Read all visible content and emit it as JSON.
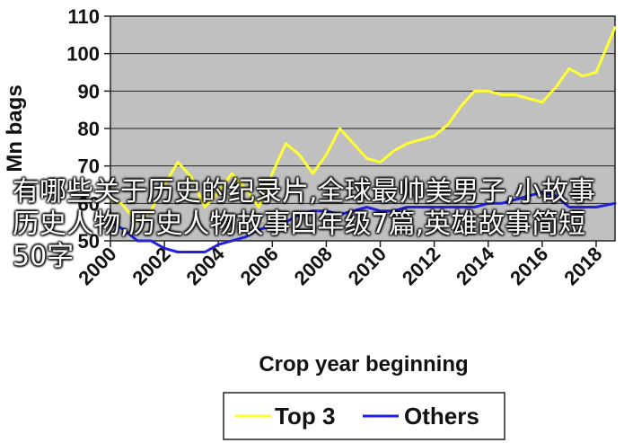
{
  "chart_data": {
    "type": "line",
    "xlabel": "Crop year beginning",
    "ylabel": "Mn bags",
    "xlim": [
      2000,
      2018.7
    ],
    "ylim": [
      50,
      110
    ],
    "yticks": [
      50,
      60,
      70,
      80,
      90,
      100,
      110
    ],
    "xticks": [
      "2000",
      "2002",
      "2004",
      "2006",
      "2008",
      "2010",
      "2012",
      "2014",
      "2016",
      "2018"
    ],
    "grid": "horizontal",
    "legend_position": "bottom",
    "series": [
      {
        "name": "Top 3",
        "color": "#ffff33",
        "x": [
          2000,
          2000.4,
          2001,
          2001.5,
          2002,
          2002.5,
          2003,
          2003.5,
          2004,
          2004.5,
          2005,
          2005.5,
          2006,
          2006.5,
          2007,
          2007.5,
          2008,
          2008.5,
          2009,
          2009.5,
          2010,
          2010.5,
          2011,
          2011.5,
          2012,
          2012.5,
          2013,
          2013.5,
          2014,
          2014.5,
          2015,
          2015.5,
          2016,
          2016.5,
          2017,
          2017.5,
          2018,
          2018.7
        ],
        "values": [
          61,
          60,
          55,
          58,
          65,
          71,
          67,
          59,
          63,
          68,
          64,
          59,
          68,
          76,
          73,
          68,
          73,
          80,
          76,
          72,
          71,
          74,
          76,
          77,
          78,
          81,
          86,
          90,
          90,
          89,
          89,
          88,
          87,
          91,
          96,
          94,
          95,
          107
        ]
      },
      {
        "name": "Others",
        "color": "#2222dd",
        "x": [
          2000,
          2000.5,
          2001,
          2001.5,
          2002,
          2002.5,
          2003,
          2003.5,
          2004,
          2004.5,
          2005,
          2005.5,
          2006,
          2006.5,
          2007,
          2007.5,
          2008,
          2008.5,
          2009,
          2009.5,
          2010,
          2010.5,
          2011,
          2011.5,
          2012,
          2012.5,
          2013,
          2013.5,
          2014,
          2014.5,
          2015,
          2015.5,
          2016,
          2016.5,
          2017,
          2017.5,
          2018,
          2018.7
        ],
        "values": [
          55,
          53,
          50,
          50,
          48,
          47,
          47,
          47,
          49,
          50,
          51,
          53,
          54,
          55,
          57,
          58,
          58,
          57,
          58,
          59,
          58,
          58,
          59,
          59,
          59,
          59,
          59,
          59,
          60,
          60,
          61,
          62,
          63,
          62,
          59,
          59,
          59,
          60
        ]
      }
    ]
  },
  "overlay_text": "有哪些关于历史的纪录片,全球最帅美男子,小故事历史人物,历史人物故事四年级7篇,英雄故事简短50字"
}
